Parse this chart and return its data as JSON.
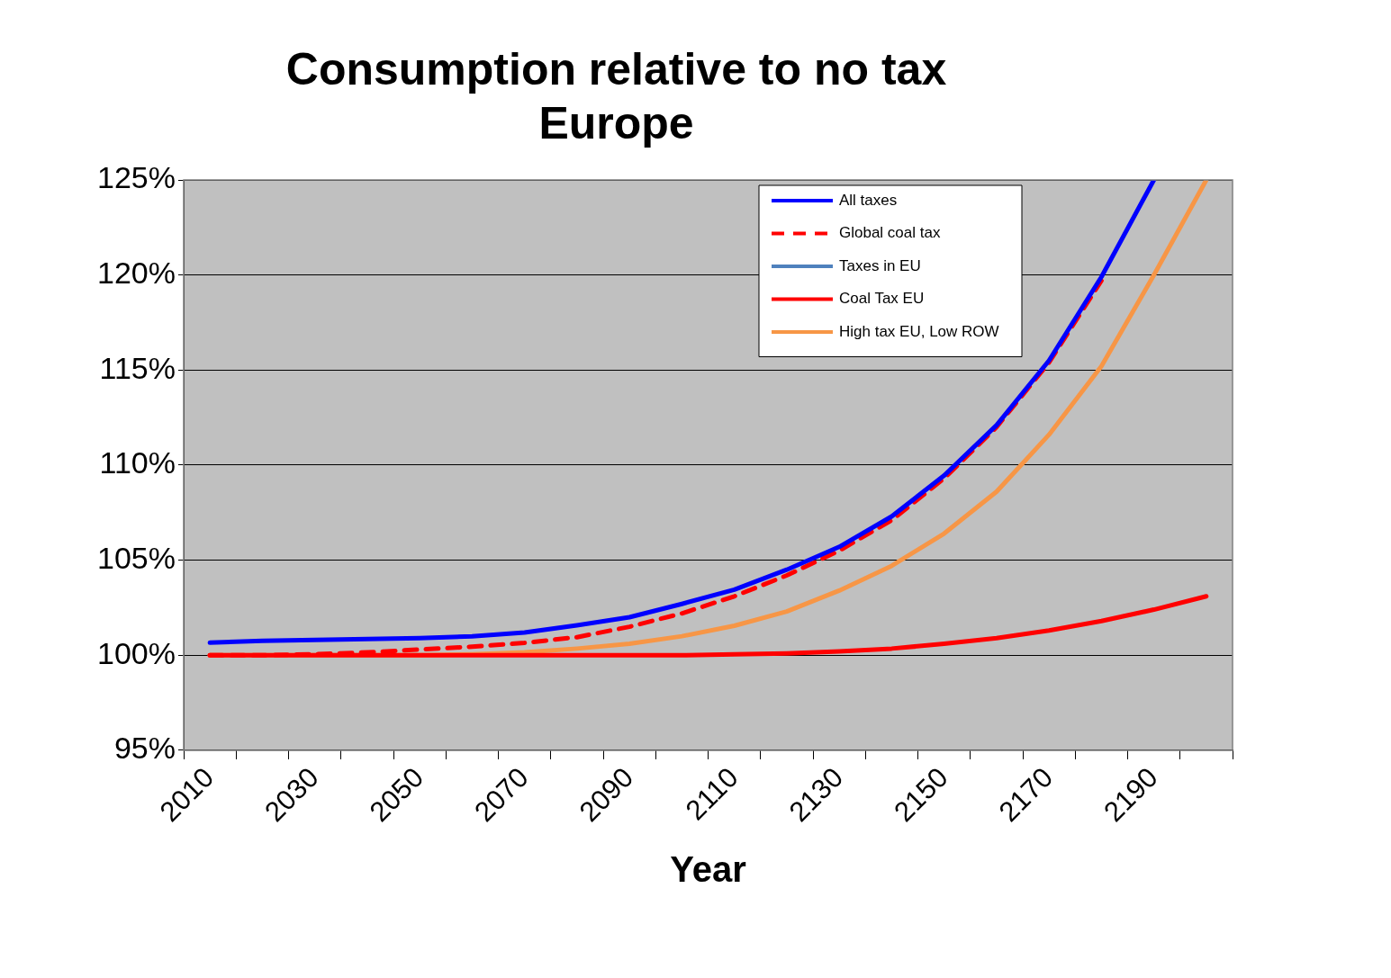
{
  "chart_data": {
    "type": "line",
    "title": [
      "Consumption relative to no tax",
      "Europe"
    ],
    "xlabel": "Year",
    "categories": [
      "2010",
      null,
      "2030",
      null,
      "2050",
      null,
      "2070",
      null,
      "2090",
      null,
      "2110",
      null,
      "2130",
      null,
      "2150",
      null,
      "2170",
      null,
      "2190",
      null
    ],
    "series": [
      {
        "name": "All taxes",
        "color": "#0000ff",
        "values": [
          100.66,
          100.76,
          100.8,
          100.85,
          100.9,
          101.0,
          101.2,
          101.57,
          102.0,
          102.7,
          103.45,
          104.5,
          105.7,
          107.3,
          109.45,
          112.1,
          115.5,
          119.9,
          125,
          null
        ]
      },
      {
        "name": "Global coal tax",
        "color": "#ff0000",
        "line_style": "dashed",
        "values": [
          100.0,
          100.0,
          100.05,
          100.15,
          100.3,
          100.45,
          100.65,
          100.95,
          101.5,
          102.2,
          103.1,
          104.2,
          105.5,
          107.1,
          109.3,
          112.0,
          115.4,
          119.7,
          null,
          null
        ]
      },
      {
        "name": "Taxes in EU",
        "color": "#4f81bd",
        "values": [
          null,
          null,
          null,
          null,
          null,
          null,
          null,
          null,
          null,
          null,
          null,
          null,
          null,
          null,
          null,
          null,
          null,
          null,
          null,
          null
        ]
      },
      {
        "name": "Coal Tax EU",
        "color": "#ff0000",
        "values": [
          100.0,
          100.0,
          100.0,
          100.0,
          100.0,
          100.0,
          100.0,
          100.0,
          100.0,
          100.0,
          100.05,
          100.1,
          100.2,
          100.35,
          100.6,
          100.9,
          101.3,
          101.8,
          102.4,
          103.1
        ]
      },
      {
        "name": "High tax EU, Low ROW",
        "color": "#f79646",
        "values": [
          100.0,
          100.0,
          100.0,
          100.0,
          100.0,
          100.05,
          100.15,
          100.35,
          100.6,
          101.0,
          101.55,
          102.3,
          103.4,
          104.7,
          106.4,
          108.6,
          111.6,
          115.2,
          120.0,
          125
        ]
      }
    ],
    "ylim": [
      95,
      125
    ],
    "yticks": [
      {
        "value": 95,
        "label": "95%"
      },
      {
        "value": 100,
        "label": "100%"
      },
      {
        "value": 105,
        "label": "105%"
      },
      {
        "value": 110,
        "label": "110%"
      },
      {
        "value": 115,
        "label": "115%"
      },
      {
        "value": 120,
        "label": "120%"
      },
      {
        "value": 125,
        "label": "125%"
      }
    ],
    "grid": "y",
    "legend": "top right",
    "line_style": "solid",
    "marker": "none"
  }
}
